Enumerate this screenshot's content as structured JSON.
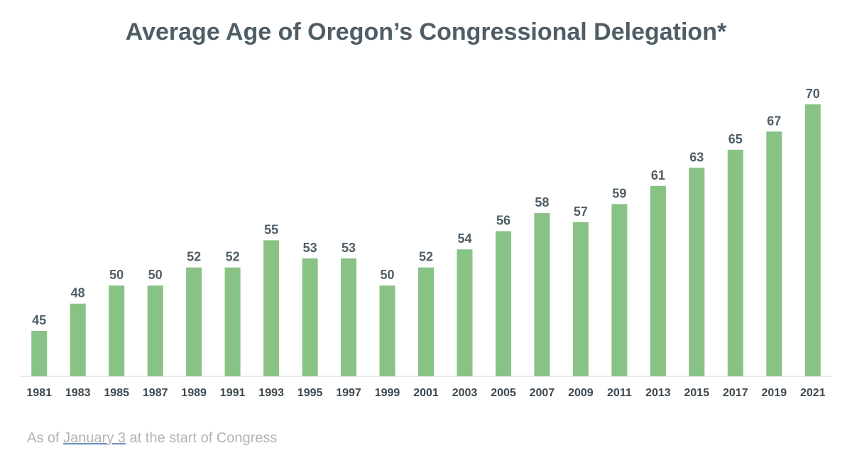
{
  "chart_data": {
    "type": "bar",
    "title": "Average Age of Oregon’s Congressional Delegation*",
    "xlabel": "",
    "ylabel": "",
    "categories": [
      "1981",
      "1983",
      "1985",
      "1987",
      "1989",
      "1991",
      "1993",
      "1995",
      "1997",
      "1999",
      "2001",
      "2003",
      "2005",
      "2007",
      "2009",
      "2011",
      "2013",
      "2015",
      "2017",
      "2019",
      "2021"
    ],
    "values": [
      45,
      48,
      50,
      50,
      52,
      52,
      55,
      53,
      53,
      50,
      52,
      54,
      56,
      58,
      57,
      59,
      61,
      63,
      65,
      67,
      70
    ],
    "data_labels": true,
    "grid": false,
    "legend": "none",
    "bar_color": "#88c385"
  },
  "footnote": {
    "prefix": "As of ",
    "link": "January 3",
    "suffix": " at the start of Congress"
  }
}
